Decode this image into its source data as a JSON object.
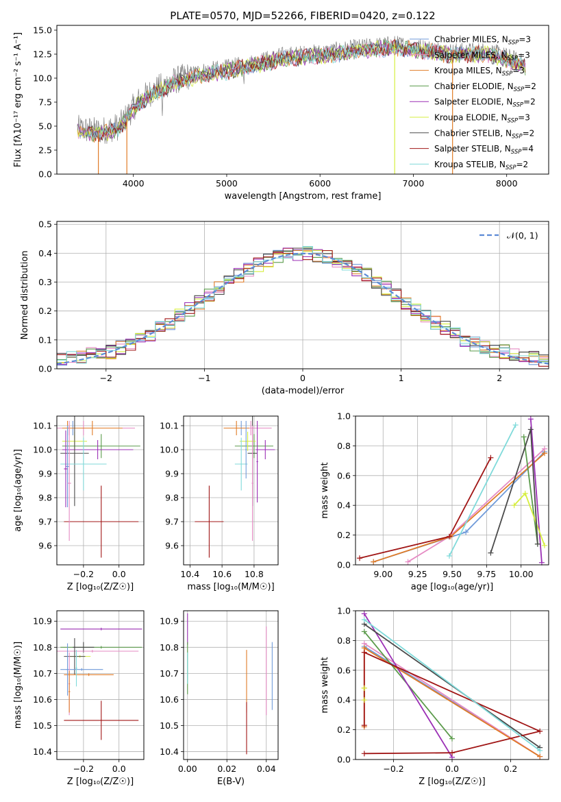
{
  "colors": {
    "Chabrier MILES": "#6f9ad9",
    "Salpeter MILES": "#e58ac3",
    "Kroupa MILES": "#e07b26",
    "Chabrier ELODIE": "#5a9a4a",
    "Salpeter ELODIE": "#9b2fb5",
    "Kroupa ELODIE": "#d6ee3e",
    "Chabrier STELIB": "#4a4a4a",
    "Salpeter STELIB": "#a01515",
    "Kroupa STELIB": "#7fdada",
    "gray": "#808080",
    "normal": "#5b8ad6",
    "grid": "#b0b0b0"
  },
  "chart_data": [
    {
      "id": "spectrum",
      "type": "line",
      "title": "PLATE=0570, MJD=52266, FIBERID=0420, z=0.122",
      "xlabel": "wavelength [Angstrom, rest frame]",
      "ylabel": "Flux [fλ10⁻¹⁷ erg cm⁻² s⁻¹ A⁻¹]",
      "xlim": [
        3180,
        8450
      ],
      "ylim": [
        0,
        15.5
      ],
      "xticks": [
        4000,
        5000,
        6000,
        7000,
        8000
      ],
      "yticks": [
        0.0,
        2.5,
        5.0,
        7.5,
        10.0,
        12.5,
        15.0
      ],
      "ytick_labels": [
        "0.0",
        "2.5",
        "5.0",
        "7.5",
        "10.0",
        "12.5",
        "15.0"
      ],
      "grid": false,
      "legend_position": "upper-right",
      "legend": [
        {
          "name": "Chabrier MILES",
          "nssp": "3"
        },
        {
          "name": "Salpeter MILES",
          "nssp": "3"
        },
        {
          "name": "Kroupa MILES",
          "nssp": "3"
        },
        {
          "name": "Chabrier ELODIE",
          "nssp": "2"
        },
        {
          "name": "Salpeter ELODIE",
          "nssp": "2"
        },
        {
          "name": "Kroupa ELODIE",
          "nssp": "3"
        },
        {
          "name": "Chabrier STELIB",
          "nssp": "2"
        },
        {
          "name": "Salpeter STELIB",
          "nssp": "4"
        },
        {
          "name": "Kroupa STELIB",
          "nssp": "2"
        }
      ],
      "continuum": [
        [
          3400,
          4.7
        ],
        [
          3600,
          4.5
        ],
        [
          3700,
          4.6
        ],
        [
          3850,
          5.0
        ],
        [
          3950,
          6.3
        ],
        [
          4050,
          7.6
        ],
        [
          4200,
          8.6
        ],
        [
          4400,
          9.6
        ],
        [
          4700,
          10.6
        ],
        [
          5000,
          11.0
        ],
        [
          5300,
          11.6
        ],
        [
          5600,
          12.3
        ],
        [
          6000,
          12.6
        ],
        [
          6400,
          13.1
        ],
        [
          6800,
          13.5
        ],
        [
          7200,
          13.0
        ],
        [
          7400,
          12.7
        ],
        [
          7800,
          12.8
        ],
        [
          8000,
          12.2
        ],
        [
          8200,
          11.5
        ]
      ],
      "dips": [
        {
          "x": 3625,
          "series": "Kroupa MILES"
        },
        {
          "x": 3930,
          "series": "Kroupa MILES"
        },
        {
          "x": 6800,
          "series": "Kroupa ELODIE"
        },
        {
          "x": 7420,
          "series": "Kroupa MILES"
        }
      ]
    },
    {
      "id": "residuals",
      "type": "step",
      "xlabel": "(data-model)/error",
      "ylabel": "Normed distribution",
      "xlim": [
        -2.5,
        2.5
      ],
      "ylim": [
        0,
        0.51
      ],
      "xticks": [
        -2,
        -1,
        0,
        1,
        2
      ],
      "xtick_labels": [
        "−2",
        "−1",
        "0",
        "1",
        "2"
      ],
      "yticks": [
        0.0,
        0.1,
        0.2,
        0.3,
        0.4,
        0.5
      ],
      "ytick_labels": [
        "0.0",
        "0.1",
        "0.2",
        "0.3",
        "0.4",
        "0.5"
      ],
      "grid": true,
      "legend_position": "upper-right",
      "legend_label": "𝒩(0, 1)",
      "bin_width": 0.1
    },
    {
      "id": "age-vs-z",
      "type": "errorbar",
      "xlabel": "Z [log₁₀(Z/Z☉)]",
      "ylabel": "age  [log₁₀(age/yr)]",
      "xlim": [
        -0.35,
        0.14
      ],
      "ylim": [
        9.52,
        10.14
      ],
      "xticks": [
        -0.2,
        0.0
      ],
      "xtick_labels": [
        "−0.2",
        "0.0"
      ],
      "yticks": [
        9.6,
        9.7,
        9.8,
        9.9,
        10.0,
        10.1
      ],
      "ytick_labels": [
        "9.6",
        "9.7",
        "9.8",
        "9.9",
        "10.0",
        "10.1"
      ],
      "grid": true,
      "points": [
        {
          "series": "Chabrier MILES",
          "x": -0.26,
          "y": 10.09,
          "xerr": 0.04,
          "yerr": 0.03
        },
        {
          "series": "Salpeter MILES",
          "x": -0.28,
          "y": 10.09,
          "xerr": 0.04,
          "yerr": 0.03
        },
        {
          "series": "Salpeter MILES",
          "x": -0.2,
          "y": 10.09,
          "xerr": 0.29,
          "yerr": 0.03
        },
        {
          "series": "Kroupa MILES",
          "x": -0.29,
          "y": 10.09,
          "xerr": 0.01,
          "yerr": 0.03
        },
        {
          "series": "Kroupa MILES",
          "x": -0.15,
          "y": 10.09,
          "xerr": 0.17,
          "yerr": 0.03
        },
        {
          "series": "Chabrier ELODIE",
          "x": -0.1,
          "y": 10.015,
          "xerr": 0.22,
          "yerr": 0.05
        },
        {
          "series": "Salpeter ELODIE",
          "x": -0.12,
          "y": 10.0,
          "xerr": 0.2,
          "yerr": 0.04
        },
        {
          "series": "Kroupa ELODIE",
          "x": -0.25,
          "y": 10.035,
          "xerr": 0.07,
          "yerr": 0.04
        },
        {
          "series": "Chabrier STELIB",
          "x": -0.25,
          "y": 9.985,
          "xerr": 0.08,
          "yerr": 0.22
        },
        {
          "series": "Salpeter STELIB",
          "x": -0.1,
          "y": 9.7,
          "xerr": 0.21,
          "yerr": 0.15
        },
        {
          "series": "Kroupa STELIB",
          "x": -0.2,
          "y": 9.94,
          "xerr": 0.13,
          "yerr": 0.11
        },
        {
          "series": "Chabrier MILES",
          "x": -0.29,
          "y": 9.93,
          "xerr": 0.01,
          "yerr": 0.17
        },
        {
          "series": "Salpeter MILES",
          "x": -0.28,
          "y": 9.86,
          "xerr": 0.01,
          "yerr": 0.24
        },
        {
          "series": "Salpeter ELODIE",
          "x": -0.3,
          "y": 9.92,
          "xerr": 0.01,
          "yerr": 0.16
        }
      ]
    },
    {
      "id": "age-vs-mass",
      "type": "errorbar",
      "xlabel": "mass [log₁₀(M/M☉)]",
      "ylabel": "",
      "xlim": [
        10.36,
        10.95
      ],
      "ylim": [
        9.52,
        10.14
      ],
      "xticks": [
        10.4,
        10.6,
        10.8
      ],
      "xtick_labels": [
        "10.4",
        "10.6",
        "10.8"
      ],
      "yticks": [
        9.6,
        9.7,
        9.8,
        9.9,
        10.0,
        10.1
      ],
      "ytick_labels": [
        "9.6",
        "9.7",
        "9.8",
        "9.9",
        "10.0",
        "10.1"
      ],
      "grid": true,
      "points": [
        {
          "series": "Chabrier MILES",
          "x": 10.72,
          "y": 10.09,
          "xerr": 0.1,
          "yerr": 0.03
        },
        {
          "series": "Salpeter MILES",
          "x": 10.78,
          "y": 10.09,
          "xerr": 0.13,
          "yerr": 0.03
        },
        {
          "series": "Kroupa MILES",
          "x": 10.69,
          "y": 10.09,
          "xerr": 0.08,
          "yerr": 0.03
        },
        {
          "series": "Chabrier ELODIE",
          "x": 10.8,
          "y": 10.015,
          "xerr": 0.12,
          "yerr": 0.05
        },
        {
          "series": "Salpeter ELODIE",
          "x": 10.87,
          "y": 10.0,
          "xerr": 0.06,
          "yerr": 0.04
        },
        {
          "series": "Kroupa ELODIE",
          "x": 10.76,
          "y": 10.035,
          "xerr": 0.05,
          "yerr": 0.04
        },
        {
          "series": "Chabrier STELIB",
          "x": 10.79,
          "y": 9.985,
          "xerr": 0.03,
          "yerr": 0.22
        },
        {
          "series": "Salpeter STELIB",
          "x": 10.52,
          "y": 9.7,
          "xerr": 0.09,
          "yerr": 0.15
        },
        {
          "series": "Kroupa STELIB",
          "x": 10.72,
          "y": 9.94,
          "xerr": 0.04,
          "yerr": 0.11
        },
        {
          "series": "Salpeter MILES",
          "x": 10.79,
          "y": 9.86,
          "xerr": 0.005,
          "yerr": 0.24
        },
        {
          "series": "Chabrier MILES",
          "x": 10.75,
          "y": 10.0,
          "xerr": 0.005,
          "yerr": 0.12
        },
        {
          "series": "Salpeter ELODIE",
          "x": 10.82,
          "y": 9.95,
          "xerr": 0.005,
          "yerr": 0.17
        }
      ]
    },
    {
      "id": "weight-vs-age",
      "type": "line",
      "xlabel": "age  [log₁₀(age/yr)]",
      "ylabel": "mass weight",
      "xlim": [
        8.8,
        10.2
      ],
      "ylim": [
        0,
        1.0
      ],
      "xticks": [
        9.0,
        9.25,
        9.5,
        9.75,
        10.0
      ],
      "xtick_labels": [
        "9.00",
        "9.25",
        "9.50",
        "9.75",
        "10.00"
      ],
      "yticks": [
        0.0,
        0.2,
        0.4,
        0.6,
        0.8,
        1.0
      ],
      "ytick_labels": [
        "0.0",
        "0.2",
        "0.4",
        "0.6",
        "0.8",
        "1.0"
      ],
      "grid": true,
      "series": [
        {
          "name": "Chabrier MILES",
          "x": [
            8.93,
            9.6,
            10.17
          ],
          "y": [
            0.02,
            0.22,
            0.76
          ]
        },
        {
          "name": "Salpeter MILES",
          "x": [
            9.18,
            9.48,
            10.17
          ],
          "y": [
            0.02,
            0.19,
            0.78
          ]
        },
        {
          "name": "Kroupa MILES",
          "x": [
            8.93,
            9.49,
            10.17
          ],
          "y": [
            0.02,
            0.19,
            0.75
          ]
        },
        {
          "name": "Chabrier ELODIE",
          "x": [
            10.02,
            10.12
          ],
          "y": [
            0.86,
            0.14
          ]
        },
        {
          "name": "Salpeter ELODIE",
          "x": [
            10.07,
            10.15
          ],
          "y": [
            0.98,
            0.015
          ]
        },
        {
          "name": "Kroupa ELODIE",
          "x": [
            9.95,
            10.03,
            10.17
          ],
          "y": [
            0.4,
            0.48,
            0.13
          ]
        },
        {
          "name": "Chabrier STELIB",
          "x": [
            9.78,
            10.07,
            10.12
          ],
          "y": [
            0.08,
            0.91,
            0.14
          ]
        },
        {
          "name": "Salpeter STELIB",
          "x": [
            8.83,
            9.48,
            9.78
          ],
          "y": [
            0.045,
            0.19,
            0.72
          ]
        },
        {
          "name": "Kroupa STELIB",
          "x": [
            9.48,
            9.96
          ],
          "y": [
            0.06,
            0.94
          ]
        }
      ]
    },
    {
      "id": "mass-vs-z",
      "type": "errorbar",
      "xlabel": "Z [log₁₀(Z/Z☉)]",
      "ylabel": "mass [log₁₀(M/M☉)]",
      "xlim": [
        -0.35,
        0.14
      ],
      "ylim": [
        10.37,
        10.94
      ],
      "xticks": [
        -0.2,
        0.0
      ],
      "xtick_labels": [
        "−0.2",
        "0.0"
      ],
      "yticks": [
        10.4,
        10.5,
        10.6,
        10.7,
        10.8,
        10.9
      ],
      "ytick_labels": [
        "10.4",
        "10.5",
        "10.6",
        "10.7",
        "10.8",
        "10.9"
      ],
      "grid": true,
      "points": [
        {
          "series": "Salpeter ELODIE",
          "x": -0.1,
          "y": 10.87,
          "xerr": 0.23,
          "yerr": 0.005
        },
        {
          "series": "Chabrier ELODIE",
          "x": -0.1,
          "y": 10.8,
          "xerr": 0.23,
          "yerr": 0.005
        },
        {
          "series": "Chabrier STELIB",
          "x": -0.2,
          "y": 10.8,
          "xerr": 0.06,
          "yerr": 0.02
        },
        {
          "series": "Salpeter MILES",
          "x": -0.15,
          "y": 10.785,
          "xerr": 0.26,
          "yerr": 0.005
        },
        {
          "series": "Kroupa ELODIE",
          "x": -0.22,
          "y": 10.765,
          "xerr": 0.06,
          "yerr": 0.005
        },
        {
          "series": "Chabrier STELIB",
          "x": -0.25,
          "y": 10.765,
          "xerr": 0.06,
          "yerr": 0.07
        },
        {
          "series": "Chabrier MILES",
          "x": -0.21,
          "y": 10.715,
          "xerr": 0.12,
          "yerr": 0.005
        },
        {
          "series": "Kroupa MILES",
          "x": -0.17,
          "y": 10.695,
          "xerr": 0.14,
          "yerr": 0.005
        },
        {
          "series": "Salpeter STELIB",
          "x": -0.1,
          "y": 10.52,
          "xerr": 0.21,
          "yerr": 0.075
        },
        {
          "series": "Chabrier MILES",
          "x": -0.29,
          "y": 10.715,
          "xerr": 0.005,
          "yerr": 0.1
        },
        {
          "series": "Salpeter MILES",
          "x": -0.28,
          "y": 10.66,
          "xerr": 0.005,
          "yerr": 0.12
        },
        {
          "series": "Kroupa MILES",
          "x": -0.28,
          "y": 10.63,
          "xerr": 0.005,
          "yerr": 0.08
        },
        {
          "series": "Kroupa STELIB",
          "x": -0.24,
          "y": 10.72,
          "xerr": 0.005,
          "yerr": 0.07
        }
      ]
    },
    {
      "id": "mass-vs-ebv",
      "type": "errorbar",
      "xlabel": "E(B-V)",
      "ylabel": "",
      "xlim": [
        -0.002,
        0.046
      ],
      "ylim": [
        10.37,
        10.94
      ],
      "xticks": [
        0.0,
        0.02,
        0.04
      ],
      "xtick_labels": [
        "0.00",
        "0.02",
        "0.04"
      ],
      "yticks": [
        10.4,
        10.5,
        10.6,
        10.7,
        10.8,
        10.9
      ],
      "ytick_labels": [
        "10.4",
        "10.5",
        "10.6",
        "10.7",
        "10.8",
        "10.9"
      ],
      "grid": true,
      "points": [
        {
          "series": "Salpeter ELODIE",
          "x": 0.0,
          "y": 10.87,
          "xerr": 0.0,
          "yerr": 0.06
        },
        {
          "series": "Chabrier ELODIE",
          "x": 0.0,
          "y": 10.72,
          "xerr": 0.0,
          "yerr": 0.1
        },
        {
          "series": "Kroupa STELIB",
          "x": 0.0,
          "y": 10.72,
          "xerr": 0.0,
          "yerr": 0.06
        },
        {
          "series": "Kroupa MILES",
          "x": 0.03,
          "y": 10.67,
          "xerr": 0.0,
          "yerr": 0.12
        },
        {
          "series": "Salpeter STELIB",
          "x": 0.03,
          "y": 10.49,
          "xerr": 0.0,
          "yerr": 0.1
        },
        {
          "series": "Salpeter MILES",
          "x": 0.04,
          "y": 10.71,
          "xerr": 0.0,
          "yerr": 0.17
        },
        {
          "series": "Chabrier MILES",
          "x": 0.043,
          "y": 10.69,
          "xerr": 0.0,
          "yerr": 0.13
        }
      ]
    },
    {
      "id": "weight-vs-z",
      "type": "line",
      "xlabel": "Z [log₁₀(Z/Z☉)]",
      "ylabel": "mass weight",
      "xlim": [
        -0.33,
        0.33
      ],
      "ylim": [
        0,
        1.0
      ],
      "xticks": [
        -0.2,
        0.0,
        0.2
      ],
      "xtick_labels": [
        "−0.2",
        "0.0",
        "0.2"
      ],
      "yticks": [
        0.0,
        0.2,
        0.4,
        0.6,
        0.8,
        1.0
      ],
      "ytick_labels": [
        "0.0",
        "0.2",
        "0.4",
        "0.6",
        "0.8",
        "1.0"
      ],
      "grid": true,
      "series": [
        {
          "name": "Chabrier MILES",
          "x": [
            -0.3,
            0.3
          ],
          "y": [
            0.76,
            0.02
          ]
        },
        {
          "name": "Salpeter MILES",
          "x": [
            -0.3,
            0.3
          ],
          "y": [
            0.78,
            0.02
          ]
        },
        {
          "name": "Kroupa MILES",
          "x": [
            -0.3,
            -0.3,
            -0.3,
            0.3
          ],
          "y": [
            0.48,
            0.22,
            0.75,
            0.02
          ]
        },
        {
          "name": "Chabrier ELODIE",
          "x": [
            -0.3,
            0.0
          ],
          "y": [
            0.86,
            0.14
          ]
        },
        {
          "name": "Salpeter ELODIE",
          "x": [
            -0.3,
            0.0
          ],
          "y": [
            0.98,
            0.015
          ]
        },
        {
          "name": "Kroupa ELODIE",
          "x": [
            -0.3,
            -0.3
          ],
          "y": [
            0.4,
            0.48
          ]
        },
        {
          "name": "Chabrier STELIB",
          "x": [
            -0.3,
            0.3
          ],
          "y": [
            0.91,
            0.08
          ]
        },
        {
          "name": "Salpeter STELIB",
          "x": [
            -0.3,
            0.0,
            0.3,
            -0.3,
            -0.3
          ],
          "y": [
            0.04,
            0.045,
            0.19,
            0.72,
            0.23
          ]
        },
        {
          "name": "Kroupa STELIB",
          "x": [
            -0.3,
            0.3
          ],
          "y": [
            0.94,
            0.06
          ]
        }
      ]
    }
  ]
}
